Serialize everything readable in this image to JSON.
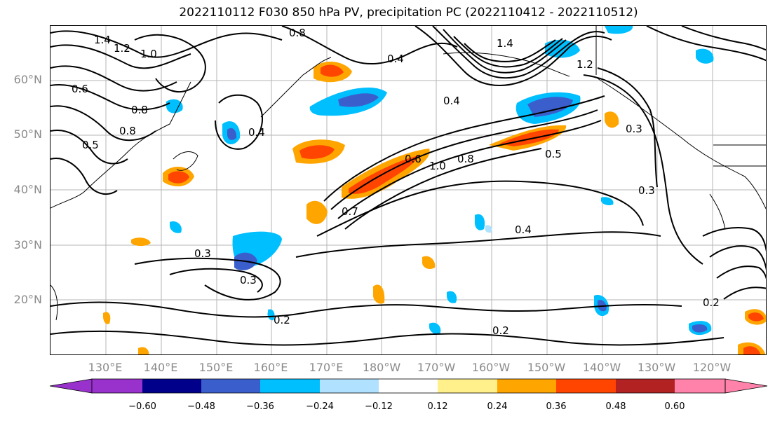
{
  "title": "2022110112 F030 850 hPa PV, precipitation PC (2022110412 - 2022110512)",
  "lat_labels": [
    "60°N",
    "50°N",
    "40°N",
    "30°N",
    "20°N"
  ],
  "lon_labels": [
    "130°E",
    "140°E",
    "150°E",
    "160°E",
    "170°E",
    "180°W",
    "170°W",
    "160°W",
    "150°W",
    "140°W",
    "130°W",
    "120°W"
  ],
  "colorbar": {
    "ticks": [
      "−0.60",
      "−0.48",
      "−0.36",
      "−0.24",
      "−0.12",
      "0.12",
      "0.24",
      "0.36",
      "0.48",
      "0.60"
    ],
    "colors": [
      "#9932cc",
      "#00008b",
      "#3a5fcd",
      "#00bfff",
      "#b0e2ff",
      "#ffffff",
      "#fff08c",
      "#ffa500",
      "#ff4500",
      "#b22222",
      "#ff82ab"
    ]
  },
  "contour_labels": [
    "1.4",
    "1.2",
    "1.0",
    "0.6",
    "0.8",
    "0.4",
    "1.4",
    "1.2",
    "0.4",
    "0.8",
    "0.6",
    "1.0",
    "0.8",
    "0.7",
    "0.3",
    "0.5",
    "0.4",
    "0.3",
    "0.3",
    "0.4",
    "0.2",
    "0.2",
    "0.3",
    "0.2",
    "0.8",
    "0.5"
  ]
}
